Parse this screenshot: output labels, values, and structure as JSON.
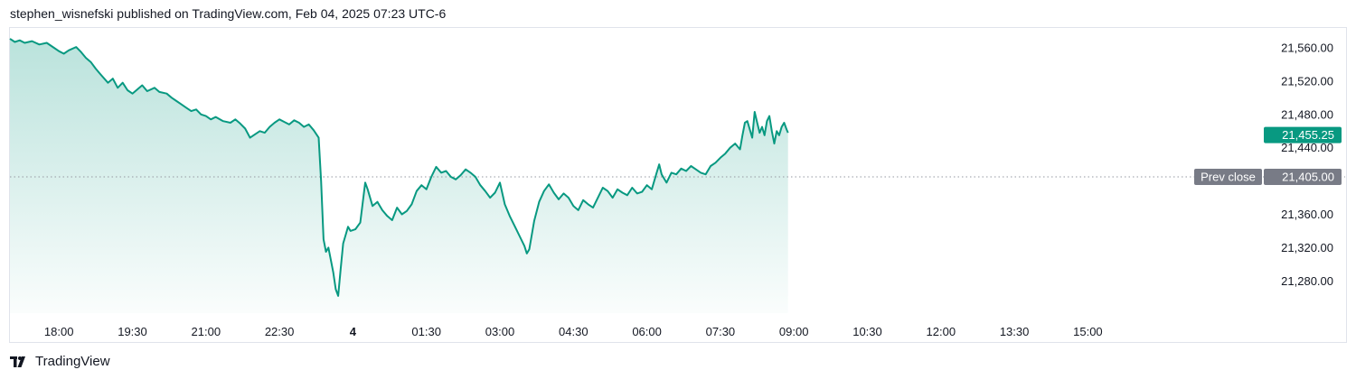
{
  "header": {
    "published_by": "stephen_wisnefski published on TradingView.com, Feb 04, 2025 07:23 UTC-6"
  },
  "footer": {
    "brand": "TradingView",
    "logo_icon": "tradingview-logo-icon"
  },
  "colors": {
    "line": "#089981",
    "area_top": "#089981",
    "prev_close_badge": "#787b86",
    "price_badge": "#089981",
    "grid": "#f0f3fa"
  },
  "chart_data": {
    "type": "area",
    "title": "",
    "xlabel": "",
    "ylabel": "",
    "x_ticks": [
      "18:00",
      "19:30",
      "21:00",
      "22:30",
      "4",
      "01:30",
      "03:00",
      "04:30",
      "06:00",
      "07:30",
      "09:00",
      "10:30",
      "12:00",
      "13:30",
      "15:00"
    ],
    "y_ticks": [
      "21,560.00",
      "21,520.00",
      "21,480.00",
      "21,440.00",
      "21,360.00",
      "21,320.00",
      "21,280.00"
    ],
    "y_tick_values": [
      21560,
      21520,
      21480,
      21440,
      21360,
      21320,
      21280
    ],
    "ylim": [
      21245,
      21580
    ],
    "x_time_labels": "hours elapsed since 17:00",
    "x_range_hours": [
      0,
      23
    ],
    "series": [
      {
        "name": "",
        "points": [
          [
            0.0,
            21571
          ],
          [
            0.1,
            21567
          ],
          [
            0.2,
            21569
          ],
          [
            0.3,
            21566
          ],
          [
            0.45,
            21568
          ],
          [
            0.6,
            21564
          ],
          [
            0.75,
            21566
          ],
          [
            0.9,
            21560
          ],
          [
            1.0,
            21556
          ],
          [
            1.1,
            21553
          ],
          [
            1.2,
            21557
          ],
          [
            1.35,
            21561
          ],
          [
            1.45,
            21555
          ],
          [
            1.55,
            21548
          ],
          [
            1.65,
            21543
          ],
          [
            1.75,
            21535
          ],
          [
            1.85,
            21528
          ],
          [
            2.0,
            21518
          ],
          [
            2.1,
            21523
          ],
          [
            2.2,
            21512
          ],
          [
            2.3,
            21518
          ],
          [
            2.4,
            21509
          ],
          [
            2.5,
            21505
          ],
          [
            2.6,
            21510
          ],
          [
            2.7,
            21515
          ],
          [
            2.8,
            21508
          ],
          [
            2.95,
            21512
          ],
          [
            3.05,
            21507
          ],
          [
            3.2,
            21505
          ],
          [
            3.3,
            21500
          ],
          [
            3.4,
            21496
          ],
          [
            3.5,
            21492
          ],
          [
            3.6,
            21488
          ],
          [
            3.7,
            21484
          ],
          [
            3.8,
            21486
          ],
          [
            3.9,
            21480
          ],
          [
            4.0,
            21478
          ],
          [
            4.1,
            21474
          ],
          [
            4.2,
            21477
          ],
          [
            4.35,
            21472
          ],
          [
            4.5,
            21470
          ],
          [
            4.6,
            21474
          ],
          [
            4.7,
            21469
          ],
          [
            4.8,
            21463
          ],
          [
            4.9,
            21452
          ],
          [
            5.0,
            21456
          ],
          [
            5.1,
            21460
          ],
          [
            5.2,
            21458
          ],
          [
            5.3,
            21465
          ],
          [
            5.4,
            21470
          ],
          [
            5.5,
            21474
          ],
          [
            5.6,
            21471
          ],
          [
            5.7,
            21468
          ],
          [
            5.8,
            21473
          ],
          [
            5.9,
            21470
          ],
          [
            6.0,
            21465
          ],
          [
            6.1,
            21468
          ],
          [
            6.2,
            21461
          ],
          [
            6.3,
            21452
          ],
          [
            6.35,
            21400
          ],
          [
            6.4,
            21330
          ],
          [
            6.45,
            21315
          ],
          [
            6.5,
            21320
          ],
          [
            6.55,
            21305
          ],
          [
            6.6,
            21290
          ],
          [
            6.65,
            21270
          ],
          [
            6.7,
            21262
          ],
          [
            6.75,
            21295
          ],
          [
            6.8,
            21325
          ],
          [
            6.85,
            21335
          ],
          [
            6.9,
            21345
          ],
          [
            6.95,
            21340
          ],
          [
            7.05,
            21342
          ],
          [
            7.15,
            21350
          ],
          [
            7.25,
            21398
          ],
          [
            7.3,
            21390
          ],
          [
            7.4,
            21370
          ],
          [
            7.5,
            21375
          ],
          [
            7.6,
            21365
          ],
          [
            7.7,
            21358
          ],
          [
            7.8,
            21353
          ],
          [
            7.9,
            21368
          ],
          [
            8.0,
            21360
          ],
          [
            8.1,
            21364
          ],
          [
            8.2,
            21372
          ],
          [
            8.3,
            21388
          ],
          [
            8.4,
            21395
          ],
          [
            8.5,
            21390
          ],
          [
            8.6,
            21405
          ],
          [
            8.7,
            21417
          ],
          [
            8.8,
            21410
          ],
          [
            8.9,
            21412
          ],
          [
            9.0,
            21405
          ],
          [
            9.1,
            21402
          ],
          [
            9.2,
            21407
          ],
          [
            9.3,
            21414
          ],
          [
            9.4,
            21410
          ],
          [
            9.5,
            21405
          ],
          [
            9.6,
            21395
          ],
          [
            9.7,
            21388
          ],
          [
            9.8,
            21380
          ],
          [
            9.9,
            21386
          ],
          [
            10.0,
            21398
          ],
          [
            10.1,
            21372
          ],
          [
            10.2,
            21358
          ],
          [
            10.3,
            21346
          ],
          [
            10.4,
            21334
          ],
          [
            10.5,
            21322
          ],
          [
            10.55,
            21313
          ],
          [
            10.6,
            21318
          ],
          [
            10.7,
            21352
          ],
          [
            10.8,
            21375
          ],
          [
            10.9,
            21388
          ],
          [
            11.0,
            21396
          ],
          [
            11.1,
            21386
          ],
          [
            11.2,
            21378
          ],
          [
            11.3,
            21385
          ],
          [
            11.4,
            21380
          ],
          [
            11.5,
            21370
          ],
          [
            11.6,
            21365
          ],
          [
            11.7,
            21377
          ],
          [
            11.8,
            21372
          ],
          [
            11.9,
            21368
          ],
          [
            12.0,
            21380
          ],
          [
            12.1,
            21392
          ],
          [
            12.2,
            21388
          ],
          [
            12.3,
            21380
          ],
          [
            12.4,
            21390
          ],
          [
            12.5,
            21386
          ],
          [
            12.6,
            21383
          ],
          [
            12.7,
            21392
          ],
          [
            12.8,
            21385
          ],
          [
            12.9,
            21387
          ],
          [
            13.0,
            21395
          ],
          [
            13.1,
            21390
          ],
          [
            13.2,
            21410
          ],
          [
            13.25,
            21420
          ],
          [
            13.3,
            21408
          ],
          [
            13.4,
            21398
          ],
          [
            13.5,
            21410
          ],
          [
            13.6,
            21408
          ],
          [
            13.7,
            21415
          ],
          [
            13.8,
            21412
          ],
          [
            13.9,
            21418
          ],
          [
            14.0,
            21414
          ],
          [
            14.1,
            21410
          ],
          [
            14.2,
            21408
          ],
          [
            14.3,
            21418
          ],
          [
            14.4,
            21422
          ],
          [
            14.5,
            21428
          ],
          [
            14.6,
            21433
          ],
          [
            14.7,
            21440
          ],
          [
            14.8,
            21445
          ],
          [
            14.9,
            21438
          ],
          [
            14.95,
            21455
          ],
          [
            15.0,
            21470
          ],
          [
            15.05,
            21472
          ],
          [
            15.1,
            21462
          ],
          [
            15.15,
            21452
          ],
          [
            15.2,
            21483
          ],
          [
            15.25,
            21470
          ],
          [
            15.3,
            21458
          ],
          [
            15.35,
            21465
          ],
          [
            15.4,
            21455
          ],
          [
            15.45,
            21472
          ],
          [
            15.5,
            21478
          ],
          [
            15.55,
            21460
          ],
          [
            15.6,
            21445
          ],
          [
            15.65,
            21460
          ],
          [
            15.7,
            21455
          ],
          [
            15.75,
            21465
          ],
          [
            15.8,
            21470
          ],
          [
            15.85,
            21462
          ],
          [
            15.88,
            21458
          ]
        ]
      }
    ],
    "prev_close": {
      "label": "Prev close",
      "value": 21405,
      "display": "21,405.00"
    },
    "last_price": {
      "value": 21455.25,
      "display": "21,455.25"
    },
    "grid": false,
    "legend": "none"
  }
}
